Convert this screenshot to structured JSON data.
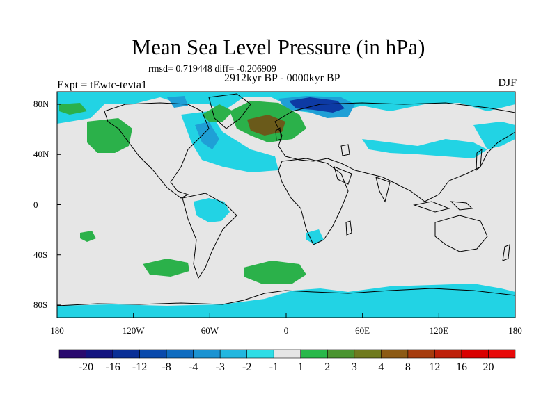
{
  "map": {
    "title": "Mean Sea Level Pressure (in hPa)",
    "stats": "rmsd= 0.719448 diff= -0.206909",
    "period": "2912kyr BP - 0000kyr BP",
    "experiment": "Expt = tEwtc-tevta1",
    "season": "DJF",
    "lon_labels": [
      "180",
      "120W",
      "60W",
      "0",
      "60E",
      "120E",
      "180"
    ],
    "lat_labels": [
      "80N",
      "40N",
      "0",
      "40S",
      "80S"
    ]
  },
  "legend": {
    "labels": [
      "-20",
      "-16",
      "-12",
      "-8",
      "-4",
      "-3",
      "-2",
      "-1",
      "1",
      "2",
      "3",
      "4",
      "8",
      "12",
      "16",
      "20"
    ],
    "colors": [
      "#2a0a6e",
      "#13147f",
      "#0a2f96",
      "#0a4aac",
      "#0f6cc0",
      "#1b93d2",
      "#22b7df",
      "#2edde6",
      "#e6e6e6",
      "#28b84a",
      "#4a9430",
      "#6f7a1e",
      "#8c5a14",
      "#a63c0e",
      "#be200a",
      "#d90000",
      "#e80a0a"
    ]
  },
  "colors": {
    "land_line": "#000000",
    "neutral": "#e6e6e6",
    "neg_light": "#22d3e4",
    "neg_mid": "#1f9fd6",
    "neg_dark": "#0d3aa4",
    "pos_light": "#2bb14a",
    "pos_dark": "#6a5a1a"
  }
}
